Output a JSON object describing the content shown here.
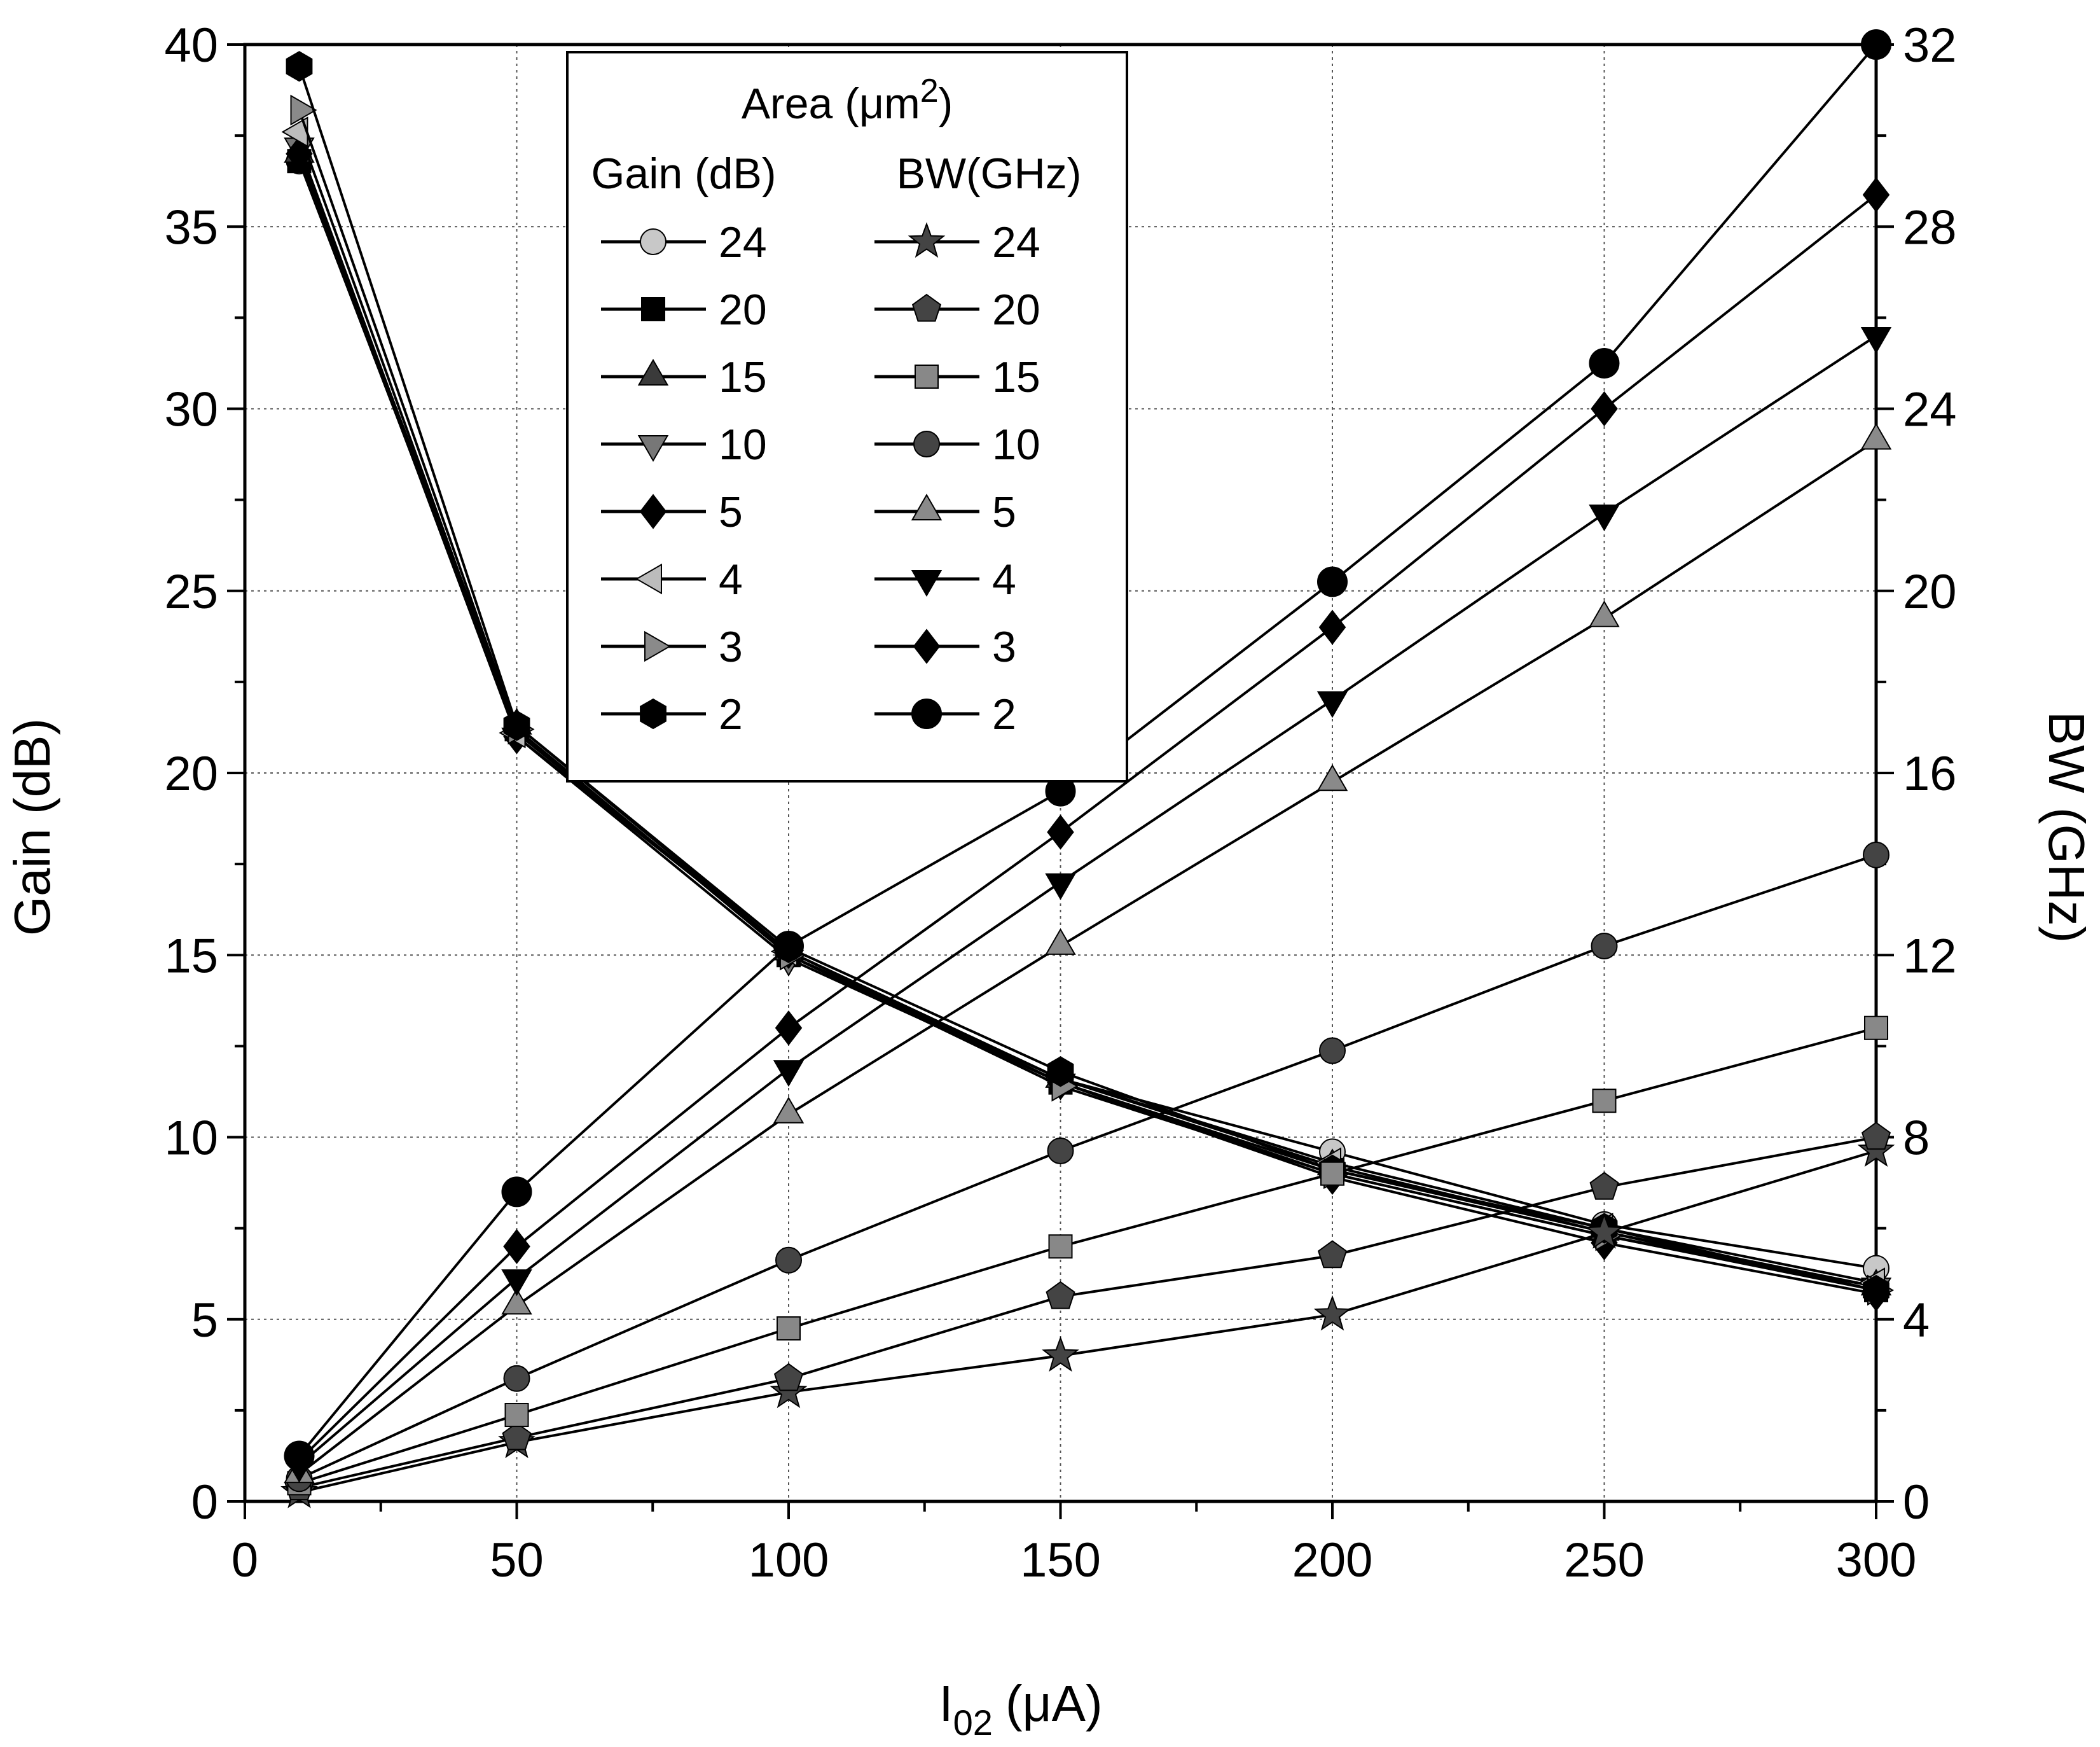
{
  "chart_data": {
    "type": "line",
    "xlabel_main": "I",
    "xlabel_sub": "02",
    "xlabel_unit": "(μA)",
    "ylabel_left": "Gain (dB)",
    "ylabel_right": "BW (GHz)",
    "xlim": [
      0,
      300
    ],
    "ylim_left": [
      0,
      40
    ],
    "ylim_right": [
      0,
      32
    ],
    "x_ticks": [
      "0",
      "50",
      "100",
      "150",
      "200",
      "250",
      "300"
    ],
    "y_left_ticks": [
      "0",
      "5",
      "10",
      "15",
      "20",
      "25",
      "30",
      "35",
      "40"
    ],
    "y_right_ticks": [
      "0",
      "4",
      "8",
      "12",
      "16",
      "20",
      "24",
      "28",
      "32"
    ],
    "grid": true,
    "legend": {
      "title_text": "Area (",
      "title_unit": "μm",
      "title_sup": "2",
      "title_close": ")",
      "col_gain_header": "Gain (dB)",
      "col_bw_header": "BW(GHz)",
      "position": "top-center"
    },
    "x": [
      10,
      50,
      100,
      150,
      200,
      250,
      300
    ],
    "gain_series": [
      {
        "name": "24",
        "marker": "circle",
        "color": "#c8c8c8",
        "values": [
          36.8,
          21.2,
          15.0,
          11.6,
          9.6,
          7.6,
          6.4
        ]
      },
      {
        "name": "20",
        "marker": "square",
        "color": "#000000",
        "values": [
          36.8,
          21.2,
          15.0,
          11.5,
          9.1,
          7.4,
          5.8
        ]
      },
      {
        "name": "15",
        "marker": "triangle-up",
        "color": "#3a3a3a",
        "values": [
          37.0,
          21.3,
          15.1,
          11.6,
          9.2,
          7.4,
          5.9
        ]
      },
      {
        "name": "10",
        "marker": "triangle-down",
        "color": "#777777",
        "values": [
          37.2,
          21.0,
          14.9,
          11.5,
          9.0,
          7.3,
          5.9
        ]
      },
      {
        "name": "5",
        "marker": "diamond",
        "color": "#000000",
        "values": [
          37.0,
          21.0,
          15.1,
          11.5,
          8.9,
          7.1,
          5.7
        ]
      },
      {
        "name": "4",
        "marker": "triangle-left",
        "color": "#bcbcbc",
        "values": [
          37.6,
          21.1,
          15.1,
          11.6,
          9.3,
          7.5,
          6.0
        ]
      },
      {
        "name": "3",
        "marker": "triangle-right",
        "color": "#8a8a8a",
        "values": [
          38.2,
          21.2,
          15.0,
          11.4,
          9.0,
          7.3,
          5.8
        ]
      },
      {
        "name": "2",
        "marker": "hexagon",
        "color": "#000000",
        "values": [
          39.4,
          21.3,
          15.2,
          11.8,
          9.1,
          7.5,
          5.8
        ]
      }
    ],
    "bw_series": [
      {
        "name": "24",
        "marker": "star",
        "color": "#444444",
        "values": [
          0.2,
          1.3,
          2.4,
          3.2,
          4.1,
          5.9,
          7.7
        ]
      },
      {
        "name": "20",
        "marker": "pentagon",
        "color": "#444444",
        "values": [
          0.3,
          1.4,
          2.7,
          4.5,
          5.4,
          6.9,
          8.0
        ]
      },
      {
        "name": "15",
        "marker": "square",
        "color": "#888888",
        "values": [
          0.4,
          1.9,
          3.8,
          5.6,
          7.2,
          8.8,
          10.4
        ]
      },
      {
        "name": "10",
        "marker": "circle",
        "color": "#444444",
        "values": [
          0.5,
          2.7,
          5.3,
          7.7,
          9.9,
          12.2,
          14.2
        ]
      },
      {
        "name": "5",
        "marker": "triangle-up",
        "color": "#8a8a8a",
        "values": [
          0.6,
          4.3,
          8.5,
          12.2,
          15.8,
          19.4,
          23.3
        ]
      },
      {
        "name": "4",
        "marker": "triangle-down",
        "color": "#000000",
        "values": [
          0.8,
          4.9,
          9.5,
          13.6,
          17.6,
          21.7,
          25.6
        ]
      },
      {
        "name": "3",
        "marker": "diamond",
        "color": "#000000",
        "values": [
          0.9,
          5.6,
          10.4,
          14.7,
          19.2,
          24.0,
          28.7
        ]
      },
      {
        "name": "2",
        "marker": "circle-bold",
        "color": "#000000",
        "values": [
          1.0,
          6.8,
          12.2,
          15.6,
          20.2,
          25.0,
          32.0
        ]
      }
    ]
  }
}
